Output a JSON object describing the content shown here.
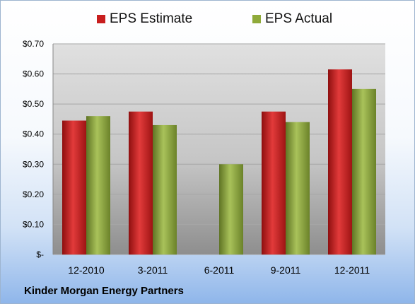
{
  "company": "Kinder Morgan Energy Partners",
  "chart_data": {
    "type": "bar",
    "categories": [
      "12-2010",
      "3-2011",
      "6-2011",
      "9-2011",
      "12-2011"
    ],
    "series": [
      {
        "name": "EPS Estimate",
        "color": "#c81e1e",
        "values": [
          0.445,
          0.475,
          null,
          0.475,
          0.615
        ]
      },
      {
        "name": "EPS Actual",
        "color": "#8faa3a",
        "values": [
          0.46,
          0.43,
          0.3,
          0.44,
          0.55
        ]
      }
    ],
    "ylim": [
      0,
      0.7
    ],
    "yticks": [
      0,
      0.1,
      0.2,
      0.3,
      0.4,
      0.5,
      0.6,
      0.7
    ],
    "ytick_labels": [
      "$-",
      "$0.10",
      "$0.20",
      "$0.30",
      "$0.40",
      "$0.50",
      "$0.60",
      "$0.70"
    ],
    "legend": "top",
    "grid": true
  }
}
